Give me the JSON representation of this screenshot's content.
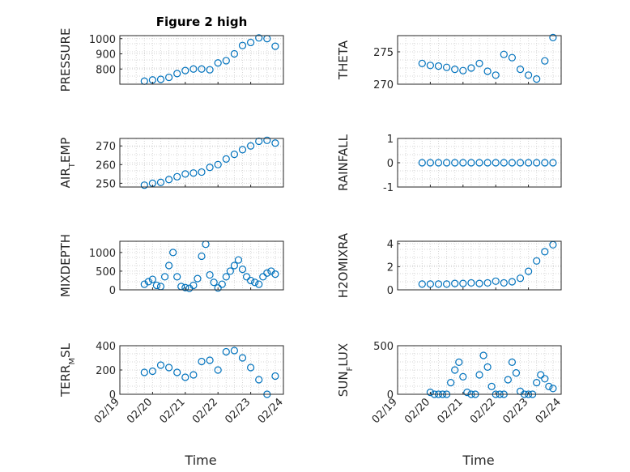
{
  "chart_data": [
    {
      "type": "scatter",
      "title": "Figure 2 high",
      "ylabel": "PRESSURE",
      "ylim": [
        700,
        1020
      ],
      "yticks": [
        "800",
        "900",
        "1000"
      ],
      "xlim": [
        "02/19",
        "02/24"
      ],
      "xticklabels": [],
      "x": [
        "02/19 18:00",
        "02/20 00:00",
        "02/20 06:00",
        "02/20 12:00",
        "02/20 18:00",
        "02/21 00:00",
        "02/21 06:00",
        "02/21 12:00",
        "02/21 18:00",
        "02/22 00:00",
        "02/22 06:00",
        "02/22 12:00",
        "02/22 18:00",
        "02/23 00:00",
        "02/23 06:00",
        "02/23 12:00",
        "02/23 18:00"
      ],
      "y": [
        720,
        728,
        732,
        745,
        770,
        790,
        800,
        800,
        795,
        840,
        855,
        900,
        955,
        975,
        1005,
        1000,
        950
      ]
    },
    {
      "type": "scatter",
      "ylabel": "THETA",
      "ylim": [
        270,
        277.5
      ],
      "yticks": [
        "270",
        "275"
      ],
      "xlim": [
        "02/19",
        "02/24"
      ],
      "xticklabels": [],
      "x": [
        "02/19 18:00",
        "02/20 00:00",
        "02/20 06:00",
        "02/20 12:00",
        "02/20 18:00",
        "02/21 00:00",
        "02/21 06:00",
        "02/21 12:00",
        "02/21 18:00",
        "02/22 00:00",
        "02/22 06:00",
        "02/22 12:00",
        "02/22 18:00",
        "02/23 00:00",
        "02/23 06:00",
        "02/23 12:00",
        "02/23 18:00"
      ],
      "y": [
        273.2,
        272.9,
        272.8,
        272.6,
        272.3,
        272.1,
        272.5,
        273.2,
        272.0,
        271.4,
        274.6,
        274.1,
        272.3,
        271.4,
        270.8,
        273.6,
        277.2
      ]
    },
    {
      "type": "scatter",
      "ylabel": "AIR_TEMP",
      "ylim": [
        248,
        274
      ],
      "yticks": [
        "250",
        "260",
        "270"
      ],
      "xlim": [
        "02/19",
        "02/24"
      ],
      "xticklabels": [],
      "x": [
        "02/19 18:00",
        "02/20 00:00",
        "02/20 06:00",
        "02/20 12:00",
        "02/20 18:00",
        "02/21 00:00",
        "02/21 06:00",
        "02/21 12:00",
        "02/21 18:00",
        "02/22 00:00",
        "02/22 06:00",
        "02/22 12:00",
        "02/22 18:00",
        "02/23 00:00",
        "02/23 06:00",
        "02/23 12:00",
        "02/23 18:00"
      ],
      "y": [
        249,
        250,
        250.5,
        252,
        253.5,
        255,
        255.5,
        256,
        258.5,
        260,
        263,
        265.5,
        268,
        270,
        272.5,
        273,
        271.5
      ]
    },
    {
      "type": "scatter",
      "ylabel": "RAINFALL",
      "ylim": [
        -1,
        1
      ],
      "yticks": [
        "-1",
        "0",
        "1"
      ],
      "xlim": [
        "02/19",
        "02/24"
      ],
      "xticklabels": [],
      "x": [
        "02/19 18:00",
        "02/20 00:00",
        "02/20 06:00",
        "02/20 12:00",
        "02/20 18:00",
        "02/21 00:00",
        "02/21 06:00",
        "02/21 12:00",
        "02/21 18:00",
        "02/22 00:00",
        "02/22 06:00",
        "02/22 12:00",
        "02/22 18:00",
        "02/23 00:00",
        "02/23 06:00",
        "02/23 12:00",
        "02/23 18:00"
      ],
      "y": [
        0,
        0,
        0,
        0,
        0,
        0,
        0,
        0,
        0,
        0,
        0,
        0,
        0,
        0,
        0,
        0,
        0
      ]
    },
    {
      "type": "scatter",
      "ylabel": "MIXDEPTH",
      "ylim": [
        0,
        1300
      ],
      "yticks": [
        "0",
        "500",
        "1000"
      ],
      "xlim": [
        "02/19",
        "02/24"
      ],
      "xticklabels": [],
      "x": [
        "02/19 18:00",
        "02/19 21:00",
        "02/20 00:00",
        "02/20 03:00",
        "02/20 06:00",
        "02/20 09:00",
        "02/20 12:00",
        "02/20 15:00",
        "02/20 18:00",
        "02/20 21:00",
        "02/21 00:00",
        "02/21 03:00",
        "02/21 06:00",
        "02/21 09:00",
        "02/21 12:00",
        "02/21 15:00",
        "02/21 18:00",
        "02/21 21:00",
        "02/22 00:00",
        "02/22 03:00",
        "02/22 06:00",
        "02/22 09:00",
        "02/22 12:00",
        "02/22 15:00",
        "02/22 18:00",
        "02/22 21:00",
        "02/23 00:00",
        "02/23 03:00",
        "02/23 06:00",
        "02/23 09:00",
        "02/23 12:00",
        "02/23 15:00",
        "02/23 18:00"
      ],
      "y": [
        150,
        220,
        280,
        120,
        90,
        350,
        650,
        1000,
        350,
        90,
        60,
        40,
        120,
        300,
        900,
        1220,
        400,
        200,
        50,
        150,
        350,
        500,
        650,
        800,
        550,
        350,
        250,
        200,
        150,
        350,
        450,
        500,
        420
      ]
    },
    {
      "type": "scatter",
      "ylabel": "H2OMIXRA",
      "ylim": [
        0,
        4.2
      ],
      "yticks": [
        "0",
        "2",
        "4"
      ],
      "xlim": [
        "02/19",
        "02/24"
      ],
      "xticklabels": [],
      "x": [
        "02/19 18:00",
        "02/20 00:00",
        "02/20 06:00",
        "02/20 12:00",
        "02/20 18:00",
        "02/21 00:00",
        "02/21 06:00",
        "02/21 12:00",
        "02/21 18:00",
        "02/22 00:00",
        "02/22 06:00",
        "02/22 12:00",
        "02/22 18:00",
        "02/23 00:00",
        "02/23 06:00",
        "02/23 12:00",
        "02/23 18:00"
      ],
      "y": [
        0.5,
        0.5,
        0.5,
        0.5,
        0.55,
        0.55,
        0.6,
        0.55,
        0.6,
        0.75,
        0.6,
        0.7,
        1.0,
        1.6,
        2.5,
        3.3,
        3.9
      ]
    },
    {
      "type": "scatter",
      "ylabel": "TERR_MSL",
      "ylim": [
        0,
        400
      ],
      "yticks": [
        "0",
        "200",
        "400"
      ],
      "xlim": [
        "02/19",
        "02/24"
      ],
      "xticklabels": [
        "02/19",
        "02/20",
        "02/21",
        "02/22",
        "02/23",
        "02/24"
      ],
      "xlabel": "Time",
      "x": [
        "02/19 18:00",
        "02/20 00:00",
        "02/20 06:00",
        "02/20 12:00",
        "02/20 18:00",
        "02/21 00:00",
        "02/21 06:00",
        "02/21 12:00",
        "02/21 18:00",
        "02/22 00:00",
        "02/22 06:00",
        "02/22 12:00",
        "02/22 18:00",
        "02/23 00:00",
        "02/23 06:00",
        "02/23 12:00",
        "02/23 18:00"
      ],
      "y": [
        180,
        190,
        240,
        220,
        180,
        140,
        160,
        270,
        280,
        200,
        350,
        360,
        300,
        220,
        120,
        0,
        150
      ]
    },
    {
      "type": "scatter",
      "ylabel": "SUN_FLUX",
      "ylim": [
        0,
        500
      ],
      "yticks": [
        "0",
        "500"
      ],
      "xlim": [
        "02/19",
        "02/24"
      ],
      "xticklabels": [
        "02/19",
        "02/20",
        "02/21",
        "02/22",
        "02/23",
        "02/24"
      ],
      "xlabel": "Time",
      "x": [
        "02/20 00:00",
        "02/20 03:00",
        "02/20 06:00",
        "02/20 09:00",
        "02/20 12:00",
        "02/20 15:00",
        "02/20 18:00",
        "02/20 21:00",
        "02/21 00:00",
        "02/21 03:00",
        "02/21 06:00",
        "02/21 09:00",
        "02/21 12:00",
        "02/21 15:00",
        "02/21 18:00",
        "02/21 21:00",
        "02/22 00:00",
        "02/22 03:00",
        "02/22 06:00",
        "02/22 09:00",
        "02/22 12:00",
        "02/22 15:00",
        "02/22 18:00",
        "02/22 21:00",
        "02/23 00:00",
        "02/23 03:00",
        "02/23 06:00",
        "02/23 09:00",
        "02/23 12:00",
        "02/23 15:00",
        "02/23 18:00"
      ],
      "y": [
        20,
        0,
        0,
        0,
        0,
        120,
        250,
        330,
        180,
        20,
        0,
        0,
        200,
        400,
        280,
        80,
        0,
        0,
        0,
        150,
        330,
        220,
        30,
        0,
        0,
        0,
        120,
        200,
        160,
        80,
        60
      ]
    }
  ]
}
